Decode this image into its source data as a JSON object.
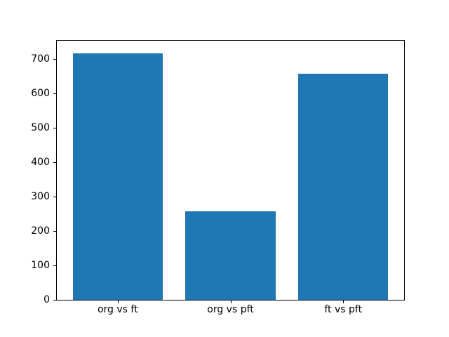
{
  "figure": {
    "background_color": "#ffffff",
    "axes_background_color": "#ffffff",
    "spine_color": "#000000"
  },
  "chart_data": {
    "type": "bar",
    "categories": [
      "org vs ft",
      "org vs pft",
      "ft vs pft"
    ],
    "values": [
      718,
      257,
      657
    ],
    "title": "",
    "xlabel": "",
    "ylabel": "",
    "ylim": [
      0,
      754
    ],
    "yticks": [
      0,
      100,
      200,
      300,
      400,
      500,
      600,
      700
    ],
    "bar_color": "#1f77b4",
    "bar_width_fraction": 0.8,
    "x_margin_fraction": 0.05,
    "grid": false,
    "legend": null
  }
}
